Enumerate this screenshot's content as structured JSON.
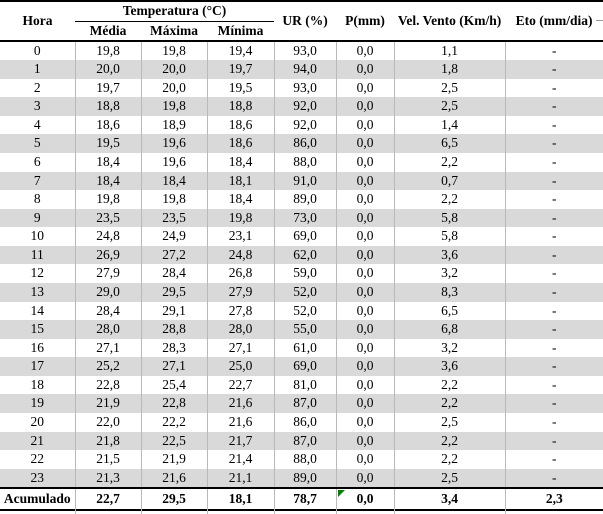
{
  "chart_data": {
    "type": "table",
    "header": {
      "hora": "Hora",
      "temperatura_group": "Temperatura (°C)",
      "temperatura_subs": [
        "Média",
        "Máxima",
        "Mínima"
      ],
      "ur": "UR (%)",
      "p": "P(mm)",
      "vel_vento": "Vel. Vento (Km/h)",
      "eto": "Eto (mm/dia)"
    },
    "rows": [
      [
        "0",
        "19,8",
        "19,8",
        "19,4",
        "93,0",
        "0,0",
        "1,1",
        "-"
      ],
      [
        "1",
        "20,0",
        "20,0",
        "19,7",
        "94,0",
        "0,0",
        "1,8",
        "-"
      ],
      [
        "2",
        "19,7",
        "20,0",
        "19,5",
        "93,0",
        "0,0",
        "2,5",
        "-"
      ],
      [
        "3",
        "18,8",
        "19,8",
        "18,8",
        "92,0",
        "0,0",
        "2,5",
        "-"
      ],
      [
        "4",
        "18,6",
        "18,9",
        "18,6",
        "92,0",
        "0,0",
        "1,4",
        "-"
      ],
      [
        "5",
        "19,5",
        "19,6",
        "18,6",
        "86,0",
        "0,0",
        "6,5",
        "-"
      ],
      [
        "6",
        "18,4",
        "19,6",
        "18,4",
        "88,0",
        "0,0",
        "2,2",
        "-"
      ],
      [
        "7",
        "18,4",
        "18,4",
        "18,1",
        "91,0",
        "0,0",
        "0,7",
        "-"
      ],
      [
        "8",
        "19,8",
        "19,8",
        "18,4",
        "89,0",
        "0,0",
        "2,2",
        "-"
      ],
      [
        "9",
        "23,5",
        "23,5",
        "19,8",
        "73,0",
        "0,0",
        "5,8",
        "-"
      ],
      [
        "10",
        "24,8",
        "24,9",
        "23,1",
        "69,0",
        "0,0",
        "5,8",
        "-"
      ],
      [
        "11",
        "26,9",
        "27,2",
        "24,8",
        "62,0",
        "0,0",
        "3,6",
        "-"
      ],
      [
        "12",
        "27,9",
        "28,4",
        "26,8",
        "59,0",
        "0,0",
        "3,2",
        "-"
      ],
      [
        "13",
        "29,0",
        "29,5",
        "27,9",
        "52,0",
        "0,0",
        "8,3",
        "-"
      ],
      [
        "14",
        "28,4",
        "29,1",
        "27,8",
        "52,0",
        "0,0",
        "6,5",
        "-"
      ],
      [
        "15",
        "28,0",
        "28,8",
        "28,0",
        "55,0",
        "0,0",
        "6,8",
        "-"
      ],
      [
        "16",
        "27,1",
        "28,3",
        "27,1",
        "61,0",
        "0,0",
        "3,2",
        "-"
      ],
      [
        "17",
        "25,2",
        "27,1",
        "25,0",
        "69,0",
        "0,0",
        "3,6",
        "-"
      ],
      [
        "18",
        "22,8",
        "25,4",
        "22,7",
        "81,0",
        "0,0",
        "2,2",
        "-"
      ],
      [
        "19",
        "21,9",
        "22,8",
        "21,6",
        "87,0",
        "0,0",
        "2,2",
        "-"
      ],
      [
        "20",
        "22,0",
        "22,2",
        "21,6",
        "86,0",
        "0,0",
        "2,5",
        "-"
      ],
      [
        "21",
        "21,8",
        "22,5",
        "21,7",
        "87,0",
        "0,0",
        "2,2",
        "-"
      ],
      [
        "22",
        "21,5",
        "21,9",
        "21,4",
        "88,0",
        "0,0",
        "2,2",
        "-"
      ],
      [
        "23",
        "21,3",
        "21,6",
        "21,1",
        "89,0",
        "0,0",
        "2,5",
        "-"
      ]
    ],
    "total_row": [
      "Acumulado",
      "22,7",
      "29,5",
      "18,1",
      "78,7",
      "0,0",
      "3,4",
      "2,3"
    ]
  },
  "colors": {
    "background": "#ffffff",
    "text": "#000000",
    "row_alt": "#d9d9d9",
    "grid_line": "#b9b9b9",
    "rule": "#000000",
    "marker_green": "#008000"
  }
}
